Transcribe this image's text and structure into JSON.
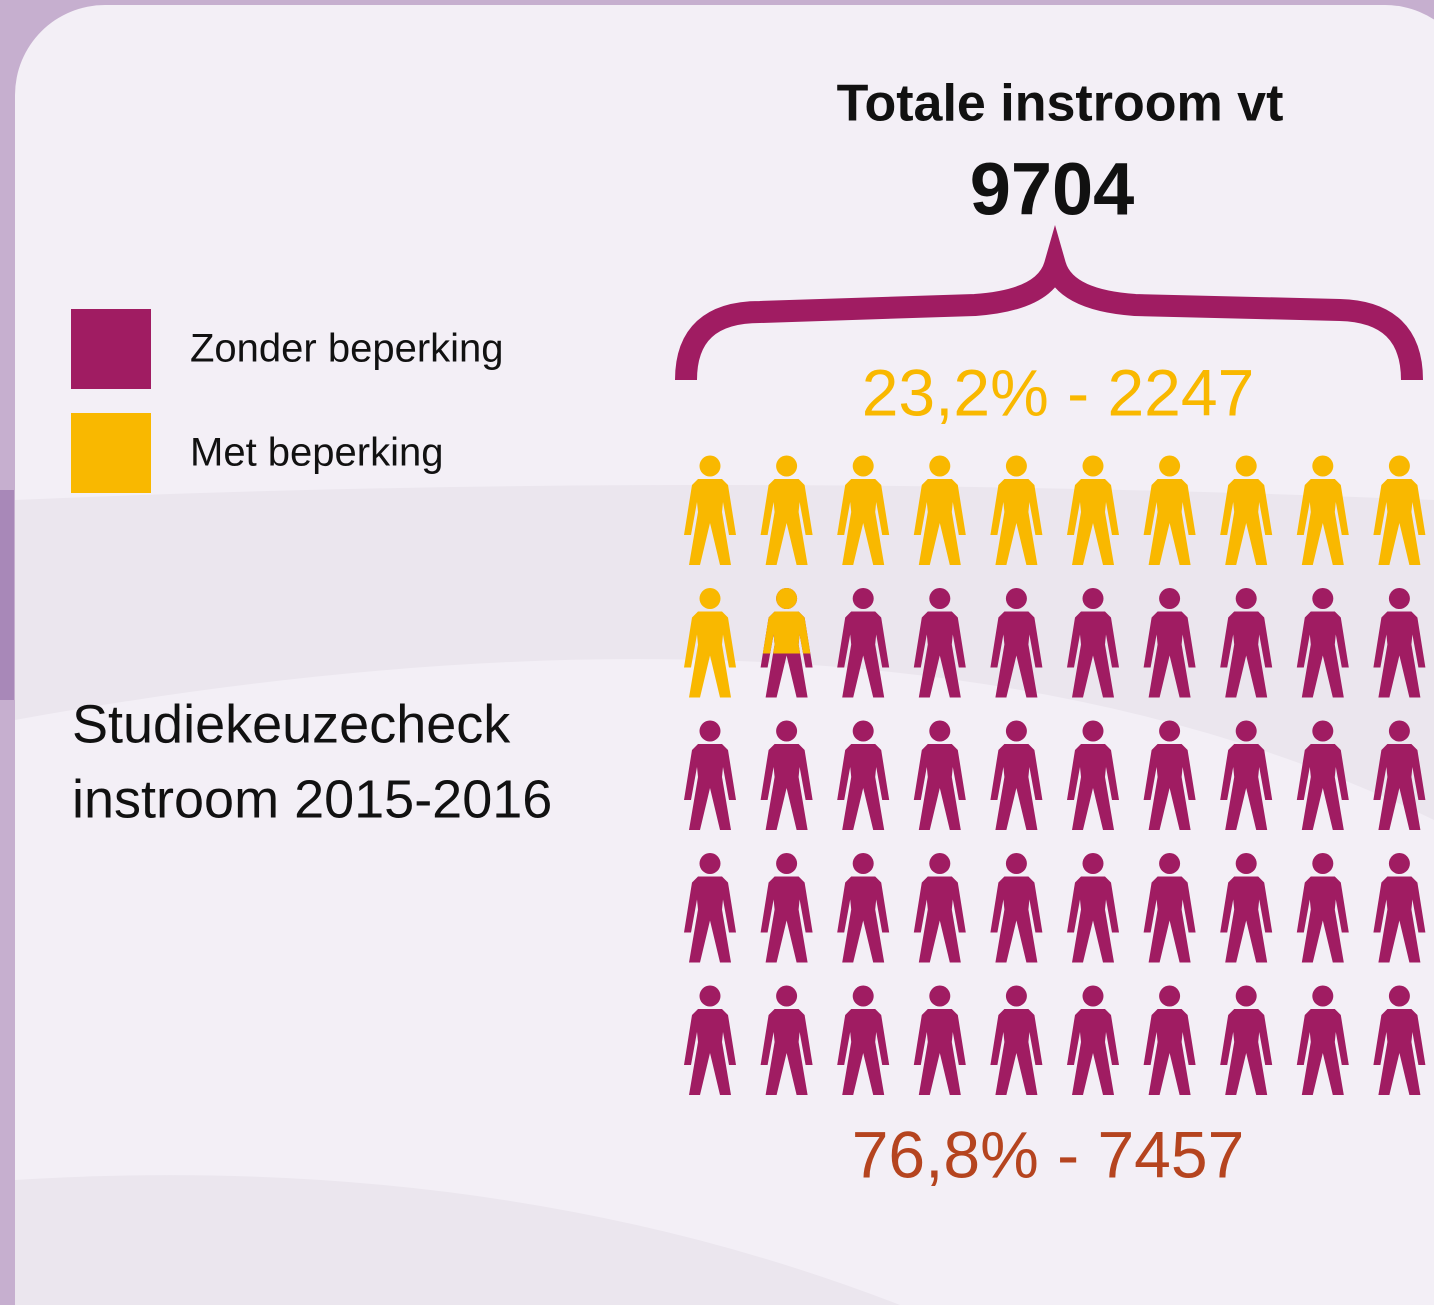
{
  "chart_data": {
    "type": "pictogram",
    "title": "Totale instroom vt",
    "total": 9704,
    "caption": [
      "Studiekeuzecheck",
      "instroom 2015-2016"
    ],
    "series": [
      {
        "name": "Met beperking",
        "color": "#f9b800",
        "label_color": "#f9b800",
        "percent": 23.2,
        "count": 2247,
        "label": "23,2% - 2247"
      },
      {
        "name": "Zonder beperking",
        "color": "#a01c62",
        "label_color": "#b5441f",
        "percent": 76.8,
        "count": 7457,
        "label": "76,8% - 7457"
      }
    ]
  }
}
